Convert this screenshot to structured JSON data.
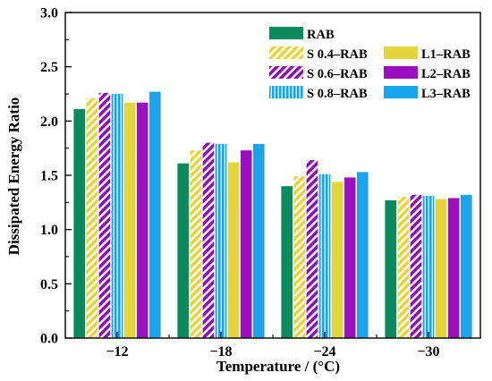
{
  "chart_data": {
    "type": "bar",
    "xlabel": "Temperature / (°C)",
    "ylabel": "Dissipated Energy Ratio",
    "ylim": [
      0,
      3.0
    ],
    "yticks": [
      "0.0",
      "0.5",
      "1.0",
      "1.5",
      "2.0",
      "2.5",
      "3.0"
    ],
    "categories": [
      "−12",
      "−18",
      "−24",
      "−30"
    ],
    "legend_position": "top-right",
    "grid": false,
    "series": [
      {
        "name": "RAB",
        "color": "#0b8a5e",
        "pattern": "solid",
        "values": [
          2.11,
          1.61,
          1.4,
          1.27
        ]
      },
      {
        "name": "S 0.4–RAB",
        "color": "#e6d53a",
        "pattern": "diagonal",
        "values": [
          2.21,
          1.73,
          1.49,
          1.3
        ]
      },
      {
        "name": "S 0.6–RAB",
        "color": "#8a10b8",
        "pattern": "diagonal",
        "values": [
          2.26,
          1.8,
          1.64,
          1.32
        ]
      },
      {
        "name": "S 0.8–RAB",
        "color": "#1ba1e8",
        "pattern": "vertical",
        "values": [
          2.25,
          1.79,
          1.51,
          1.31
        ]
      },
      {
        "name": "L1–RAB",
        "color": "#e6d53a",
        "pattern": "solid",
        "values": [
          2.17,
          1.62,
          1.44,
          1.28
        ]
      },
      {
        "name": "L2–RAB",
        "color": "#9a10c0",
        "pattern": "solid",
        "values": [
          2.17,
          1.73,
          1.48,
          1.29
        ]
      },
      {
        "name": "L3–RAB",
        "color": "#18a5ee",
        "pattern": "solid",
        "values": [
          2.27,
          1.79,
          1.53,
          1.32
        ]
      }
    ]
  }
}
